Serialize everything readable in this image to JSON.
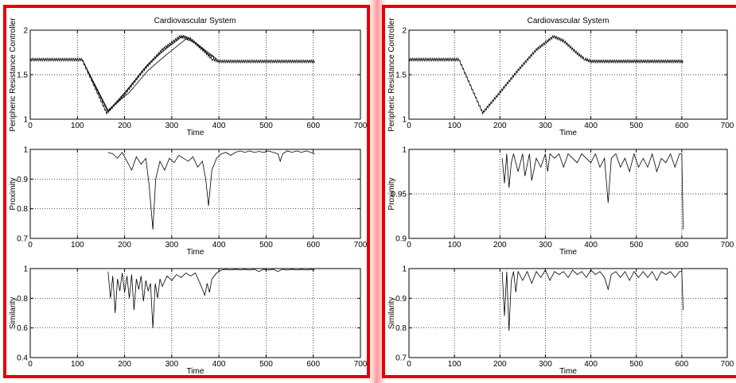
{
  "title": "Cardiovascular System",
  "chart_data": [
    {
      "panel": "left",
      "title": "Cardiovascular System",
      "subplots": [
        {
          "type": "line",
          "xlabel": "Time",
          "ylabel": "Peripheric Resistance Controller",
          "xlim": [
            0,
            700
          ],
          "ylim": [
            1,
            2
          ],
          "xticks": [
            0,
            100,
            200,
            300,
            400,
            500,
            600,
            700
          ],
          "yticks": [
            1,
            1.5,
            2
          ],
          "ytick_labels": [
            "1",
            "1.5",
            "2"
          ],
          "grid": true,
          "series": [
            {
              "oscillation": 0.03,
              "x": [
                0,
                110,
                162,
                200,
                240,
                280,
                318,
                340,
                370,
                385,
                400,
                500,
                600,
                603
              ],
              "y": [
                1.67,
                1.67,
                1.07,
                1.28,
                1.55,
                1.78,
                1.93,
                1.9,
                1.76,
                1.68,
                1.65,
                1.65,
                1.65,
                1.65
              ]
            },
            {
              "oscillation": 0.0,
              "x": [
                110,
                165,
                210,
                250,
                290,
                325,
                345,
                370,
                390
              ],
              "y": [
                1.67,
                1.08,
                1.36,
                1.62,
                1.8,
                1.94,
                1.88,
                1.78,
                1.7
              ]
            },
            {
              "oscillation": 0.0,
              "x": [
                110,
                165,
                210,
                250,
                290,
                330,
                350,
                375,
                395
              ],
              "y": [
                1.67,
                1.1,
                1.3,
                1.55,
                1.73,
                1.9,
                1.86,
                1.74,
                1.68
              ]
            }
          ]
        },
        {
          "type": "line",
          "xlabel": "Time",
          "ylabel": "Proximity",
          "xlim": [
            0,
            700
          ],
          "ylim": [
            0.7,
            1
          ],
          "xticks": [
            0,
            100,
            200,
            300,
            400,
            500,
            600,
            700
          ],
          "yticks": [
            0.7,
            0.8,
            0.9,
            1
          ],
          "ytick_labels": [
            "0.7",
            "0.8",
            "0.9",
            "1"
          ],
          "grid": true,
          "series": [
            {
              "x": [
                165,
                175,
                185,
                195,
                205,
                215,
                225,
                235,
                245,
                252,
                260,
                266,
                275,
                285,
                295,
                305,
                315,
                325,
                335,
                345,
                355,
                365,
                372,
                378,
                385,
                395,
                405,
                415,
                425,
                435,
                445,
                455,
                465,
                475,
                485,
                495,
                505,
                515,
                525,
                530,
                535,
                545,
                555,
                565,
                575,
                585,
                595,
                603
              ],
              "y": [
                0.99,
                0.985,
                0.97,
                0.99,
                0.96,
                0.93,
                0.975,
                0.95,
                0.97,
                0.88,
                0.73,
                0.9,
                0.96,
                0.93,
                0.97,
                0.955,
                0.98,
                0.97,
                0.96,
                0.975,
                0.94,
                0.96,
                0.9,
                0.81,
                0.93,
                0.97,
                0.985,
                0.99,
                0.98,
                0.99,
                0.995,
                0.99,
                0.995,
                0.99,
                0.993,
                0.99,
                0.995,
                0.99,
                0.985,
                0.96,
                0.985,
                0.995,
                0.99,
                0.995,
                0.99,
                0.995,
                0.99,
                0.985
              ]
            }
          ]
        },
        {
          "type": "line",
          "xlabel": "Time",
          "ylabel": "Similarity",
          "xlim": [
            0,
            700
          ],
          "ylim": [
            0.4,
            1
          ],
          "xticks": [
            0,
            100,
            200,
            300,
            400,
            500,
            600,
            700
          ],
          "yticks": [
            0.4,
            0.6,
            0.8,
            1
          ],
          "ytick_labels": [
            "0.4",
            "0.6",
            "0.8",
            "1"
          ],
          "grid": true,
          "series": [
            {
              "x": [
                165,
                170,
                175,
                180,
                185,
                190,
                195,
                200,
                205,
                210,
                215,
                220,
                225,
                230,
                235,
                240,
                245,
                250,
                255,
                260,
                265,
                270,
                275,
                280,
                290,
                300,
                310,
                320,
                330,
                340,
                350,
                360,
                365,
                370,
                375,
                380,
                385,
                395,
                405,
                415,
                425,
                435,
                445,
                455,
                465,
                475,
                485,
                495,
                505,
                515,
                525,
                535,
                545,
                555,
                565,
                575,
                585,
                595,
                603
              ],
              "y": [
                0.98,
                0.8,
                0.95,
                0.7,
                0.93,
                0.85,
                0.97,
                0.84,
                0.95,
                0.8,
                0.96,
                0.72,
                0.93,
                0.86,
                0.95,
                0.78,
                0.92,
                0.85,
                0.9,
                0.6,
                0.9,
                0.8,
                0.93,
                0.88,
                0.95,
                0.92,
                0.96,
                0.94,
                0.97,
                0.95,
                0.97,
                0.9,
                0.86,
                0.82,
                0.9,
                0.84,
                0.93,
                0.97,
                0.99,
                0.995,
                0.99,
                0.995,
                0.99,
                0.995,
                0.99,
                0.995,
                0.98,
                0.995,
                0.99,
                0.995,
                0.98,
                0.995,
                0.99,
                0.995,
                0.99,
                0.995,
                0.99,
                0.995,
                0.99
              ]
            }
          ]
        }
      ]
    },
    {
      "panel": "right",
      "title": "Cardiovascular System",
      "subplots": [
        {
          "type": "line",
          "xlabel": "Time",
          "ylabel": "Peripheric Resistance Controller",
          "xlim": [
            0,
            700
          ],
          "ylim": [
            1,
            2
          ],
          "xticks": [
            0,
            100,
            200,
            300,
            400,
            500,
            600,
            700
          ],
          "yticks": [
            1,
            1.5,
            2
          ],
          "ytick_labels": [
            "1",
            "1.5",
            "2"
          ],
          "grid": true,
          "series": [
            {
              "oscillation": 0.03,
              "x": [
                0,
                110,
                162,
                200,
                240,
                280,
                318,
                340,
                370,
                385,
                400,
                500,
                600,
                603
              ],
              "y": [
                1.67,
                1.67,
                1.07,
                1.3,
                1.55,
                1.78,
                1.93,
                1.88,
                1.74,
                1.68,
                1.65,
                1.65,
                1.65,
                1.65
              ]
            }
          ]
        },
        {
          "type": "line",
          "xlabel": "Time",
          "ylabel": "Proximity",
          "xlim": [
            0,
            700
          ],
          "ylim": [
            0.9,
            1
          ],
          "xticks": [
            0,
            100,
            200,
            300,
            400,
            500,
            600,
            700
          ],
          "yticks": [
            0.9,
            0.95,
            1
          ],
          "ytick_labels": [
            "0.9",
            "0.95",
            "1"
          ],
          "grid": true,
          "series": [
            {
              "x": [
                205,
                210,
                215,
                220,
                225,
                230,
                240,
                250,
                255,
                265,
                270,
                280,
                290,
                300,
                305,
                310,
                320,
                330,
                340,
                350,
                360,
                370,
                380,
                390,
                400,
                410,
                420,
                430,
                438,
                445,
                455,
                465,
                475,
                485,
                495,
                505,
                515,
                525,
                535,
                545,
                555,
                565,
                575,
                585,
                595,
                600,
                603
              ],
              "y": [
                0.99,
                0.962,
                0.995,
                0.957,
                0.985,
                0.995,
                0.975,
                0.995,
                0.97,
                0.995,
                0.965,
                0.99,
                0.98,
                0.995,
                0.975,
                0.995,
                0.99,
                0.995,
                0.98,
                0.995,
                0.99,
                0.985,
                0.995,
                0.99,
                0.985,
                0.995,
                0.98,
                0.99,
                0.94,
                0.99,
                0.995,
                0.98,
                0.99,
                0.975,
                0.995,
                0.98,
                0.99,
                0.98,
                0.995,
                0.975,
                0.99,
                0.985,
                0.995,
                0.98,
                0.995,
                0.995,
                0.91
              ]
            }
          ]
        },
        {
          "type": "line",
          "xlabel": "Time",
          "ylabel": "Similarity",
          "xlim": [
            0,
            700
          ],
          "ylim": [
            0.7,
            1
          ],
          "xticks": [
            0,
            100,
            200,
            300,
            400,
            500,
            600,
            700
          ],
          "yticks": [
            0.7,
            0.8,
            0.9,
            1
          ],
          "ytick_labels": [
            "0.7",
            "0.8",
            "0.9",
            "1"
          ],
          "grid": true,
          "series": [
            {
              "x": [
                205,
                210,
                215,
                220,
                225,
                230,
                235,
                240,
                250,
                260,
                270,
                280,
                290,
                300,
                310,
                320,
                330,
                340,
                350,
                360,
                370,
                380,
                390,
                400,
                410,
                420,
                430,
                438,
                445,
                455,
                465,
                475,
                485,
                495,
                505,
                515,
                525,
                535,
                545,
                555,
                565,
                575,
                585,
                595,
                600,
                603
              ],
              "y": [
                0.99,
                0.84,
                0.99,
                0.79,
                0.96,
                0.99,
                0.92,
                0.99,
                0.96,
                0.99,
                0.95,
                0.99,
                0.97,
                0.995,
                0.96,
                0.99,
                0.98,
                0.99,
                0.97,
                0.995,
                0.98,
                0.99,
                0.97,
                0.995,
                0.98,
                0.99,
                0.97,
                0.93,
                0.98,
                0.99,
                0.97,
                0.99,
                0.96,
                0.99,
                0.97,
                0.99,
                0.97,
                0.99,
                0.96,
                0.99,
                0.98,
                0.99,
                0.97,
                0.99,
                0.99,
                0.86
              ]
            }
          ]
        }
      ]
    }
  ]
}
